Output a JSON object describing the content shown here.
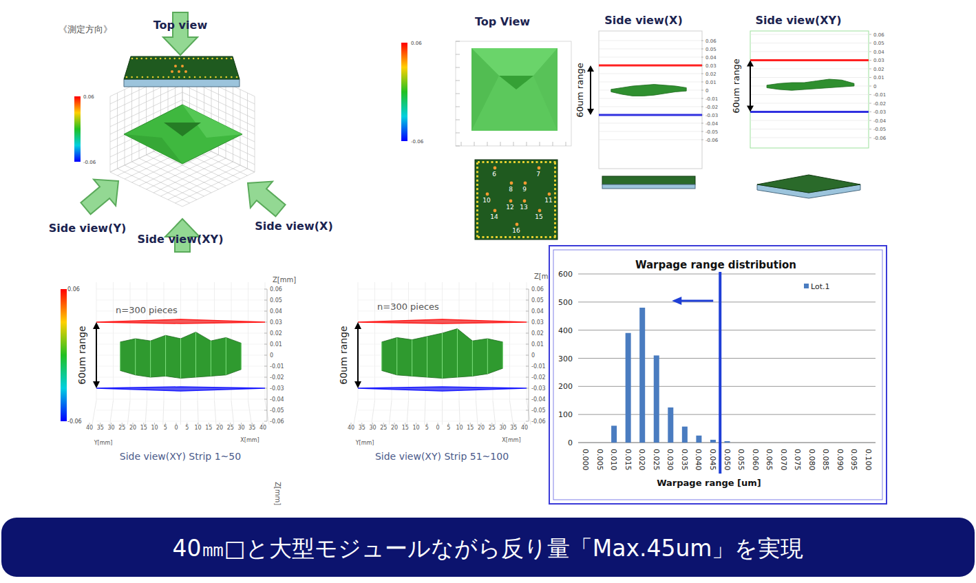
{
  "measurement_diagram": {
    "title": "《測定方向》",
    "directions": [
      "Top view",
      "Side view(Y)",
      "Side view(XY)",
      "Side view(X)"
    ],
    "colorbar": {
      "range": [
        -0.06,
        0.06
      ],
      "ticks": [
        0.06,
        -0.06
      ]
    }
  },
  "top_panels": {
    "colorbar": {
      "range": [
        -0.06,
        0.06
      ],
      "ticks": [
        0.06,
        -0.06
      ]
    },
    "top_view": {
      "title": "Top View"
    },
    "board_labels": [
      "6",
      "7",
      "8",
      "9",
      "10",
      "11",
      "12",
      "13",
      "14",
      "15",
      "16"
    ],
    "side_views": [
      {
        "title": "Side view(X)",
        "range_label": "60um range",
        "upper_limit": 0.03,
        "lower_limit": -0.03,
        "zlim": [
          -0.06,
          0.06
        ],
        "zticks": [
          0.06,
          0.05,
          0.04,
          0.03,
          0.02,
          0.01,
          0,
          -0.01,
          -0.02,
          -0.03,
          -0.04,
          -0.05,
          -0.06
        ],
        "profile_x": [
          -35,
          -25,
          -15,
          -5,
          5,
          15,
          25,
          35
        ],
        "profile_upper": [
          0.001,
          0.003,
          0.005,
          0.006,
          0.007,
          0.006,
          0.005,
          0.003
        ],
        "profile_lower": [
          -0.002,
          -0.005,
          -0.007,
          -0.007,
          -0.006,
          -0.004,
          -0.002,
          -0.001
        ]
      },
      {
        "title": "Side view(XY)",
        "range_label": "60um range",
        "upper_limit": 0.03,
        "lower_limit": -0.03,
        "zlim": [
          -0.06,
          0.06
        ],
        "zticks": [
          0.06,
          0.05,
          0.04,
          0.03,
          0.02,
          0.01,
          0,
          -0.01,
          -0.02,
          -0.03,
          -0.04,
          -0.05,
          -0.06
        ],
        "profile_x": [
          -35,
          -25,
          -15,
          -5,
          5,
          15,
          25,
          35
        ],
        "profile_upper": [
          0.001,
          0.003,
          0.004,
          0.004,
          0.006,
          0.008,
          0.007,
          0.003
        ],
        "profile_lower": [
          -0.002,
          -0.004,
          -0.005,
          -0.004,
          -0.003,
          -0.002,
          -0.001,
          0.0
        ]
      }
    ]
  },
  "strip_panels": [
    {
      "caption": "Side view(XY) Strip 1~50",
      "sample_label": "n=300 pieces",
      "range_label": "60um range",
      "upper_limit": 0.03,
      "lower_limit": -0.03,
      "zlim": [
        -0.06,
        0.06
      ],
      "zticks": [
        0.06,
        0.05,
        0.04,
        0.03,
        0.02,
        0.01,
        0,
        -0.01,
        -0.02,
        -0.03,
        -0.04,
        -0.05,
        -0.06
      ],
      "z_axis_label": "Z[mm]",
      "xticks": [
        40,
        35,
        30,
        25,
        20,
        15,
        10,
        5,
        0,
        5,
        10,
        15,
        20,
        25,
        30,
        35,
        40
      ],
      "x_axis_labels": [
        "Y[mm]",
        "X[mm]"
      ],
      "colorbar": {
        "range": [
          -0.06,
          0.06
        ],
        "ticks": [
          0.06,
          -0.06
        ]
      },
      "profile_x": [
        -36,
        -27,
        -18,
        -9,
        0,
        9,
        18,
        27,
        36
      ],
      "profile_upper": [
        0.012,
        0.015,
        0.013,
        0.018,
        0.015,
        0.021,
        0.013,
        0.016,
        0.011
      ],
      "profile_lower": [
        -0.014,
        -0.018,
        -0.02,
        -0.019,
        -0.021,
        -0.02,
        -0.019,
        -0.018,
        -0.013
      ]
    },
    {
      "caption": "Side view(XY) Strip 51~100",
      "sample_label": "n=300 pieces",
      "range_label": "60um range",
      "upper_limit": 0.03,
      "lower_limit": -0.03,
      "zlim": [
        -0.06,
        0.06
      ],
      "zticks": [
        0.06,
        0.05,
        0.04,
        0.03,
        0.02,
        0.01,
        0,
        -0.01,
        -0.02,
        -0.03,
        -0.04,
        -0.05,
        -0.06
      ],
      "z_axis_label": "Z[mm]",
      "xticks": [
        40,
        35,
        30,
        25,
        20,
        15,
        10,
        5,
        0,
        5,
        10,
        15,
        20,
        25,
        30,
        35,
        40
      ],
      "x_axis_labels": [
        "Y[mm]",
        "X[mm]"
      ],
      "profile_x": [
        -36,
        -27,
        -18,
        -9,
        0,
        9,
        18,
        27,
        36
      ],
      "profile_upper": [
        0.012,
        0.016,
        0.014,
        0.017,
        0.02,
        0.024,
        0.013,
        0.015,
        0.012
      ],
      "profile_lower": [
        -0.014,
        -0.018,
        -0.019,
        -0.02,
        -0.021,
        -0.02,
        -0.019,
        -0.017,
        -0.012
      ]
    }
  ],
  "stray_label": "Z[mm]",
  "chart_data": {
    "type": "bar",
    "title": "Warpage range distribution",
    "x_label": "Warpage range [um]",
    "categories": [
      "0.000",
      "0.005",
      "0.010",
      "0.015",
      "0.020",
      "0.025",
      "0.030",
      "0.035",
      "0.040",
      "0.045",
      "0.050",
      "0.055",
      "0.060",
      "0.065",
      "0.070",
      "0.075",
      "0.080",
      "0.085",
      "0.090",
      "0.095",
      "0.100"
    ],
    "series": [
      {
        "name": "Lot.1",
        "color": "#4a7cc0",
        "values": [
          0,
          0,
          60,
          390,
          480,
          310,
          125,
          57,
          25,
          10,
          5,
          0,
          0,
          0,
          0,
          0,
          0,
          0,
          0,
          0,
          0
        ]
      }
    ],
    "ylim": [
      0,
      600
    ],
    "yticks": [
      0,
      100,
      200,
      300,
      400,
      500,
      600
    ],
    "grid": true,
    "legend": "top-right",
    "limit_line": 0.0475
  },
  "banner": "40㎜□と大型モジュールながら反り量「Max.45um」を実現"
}
